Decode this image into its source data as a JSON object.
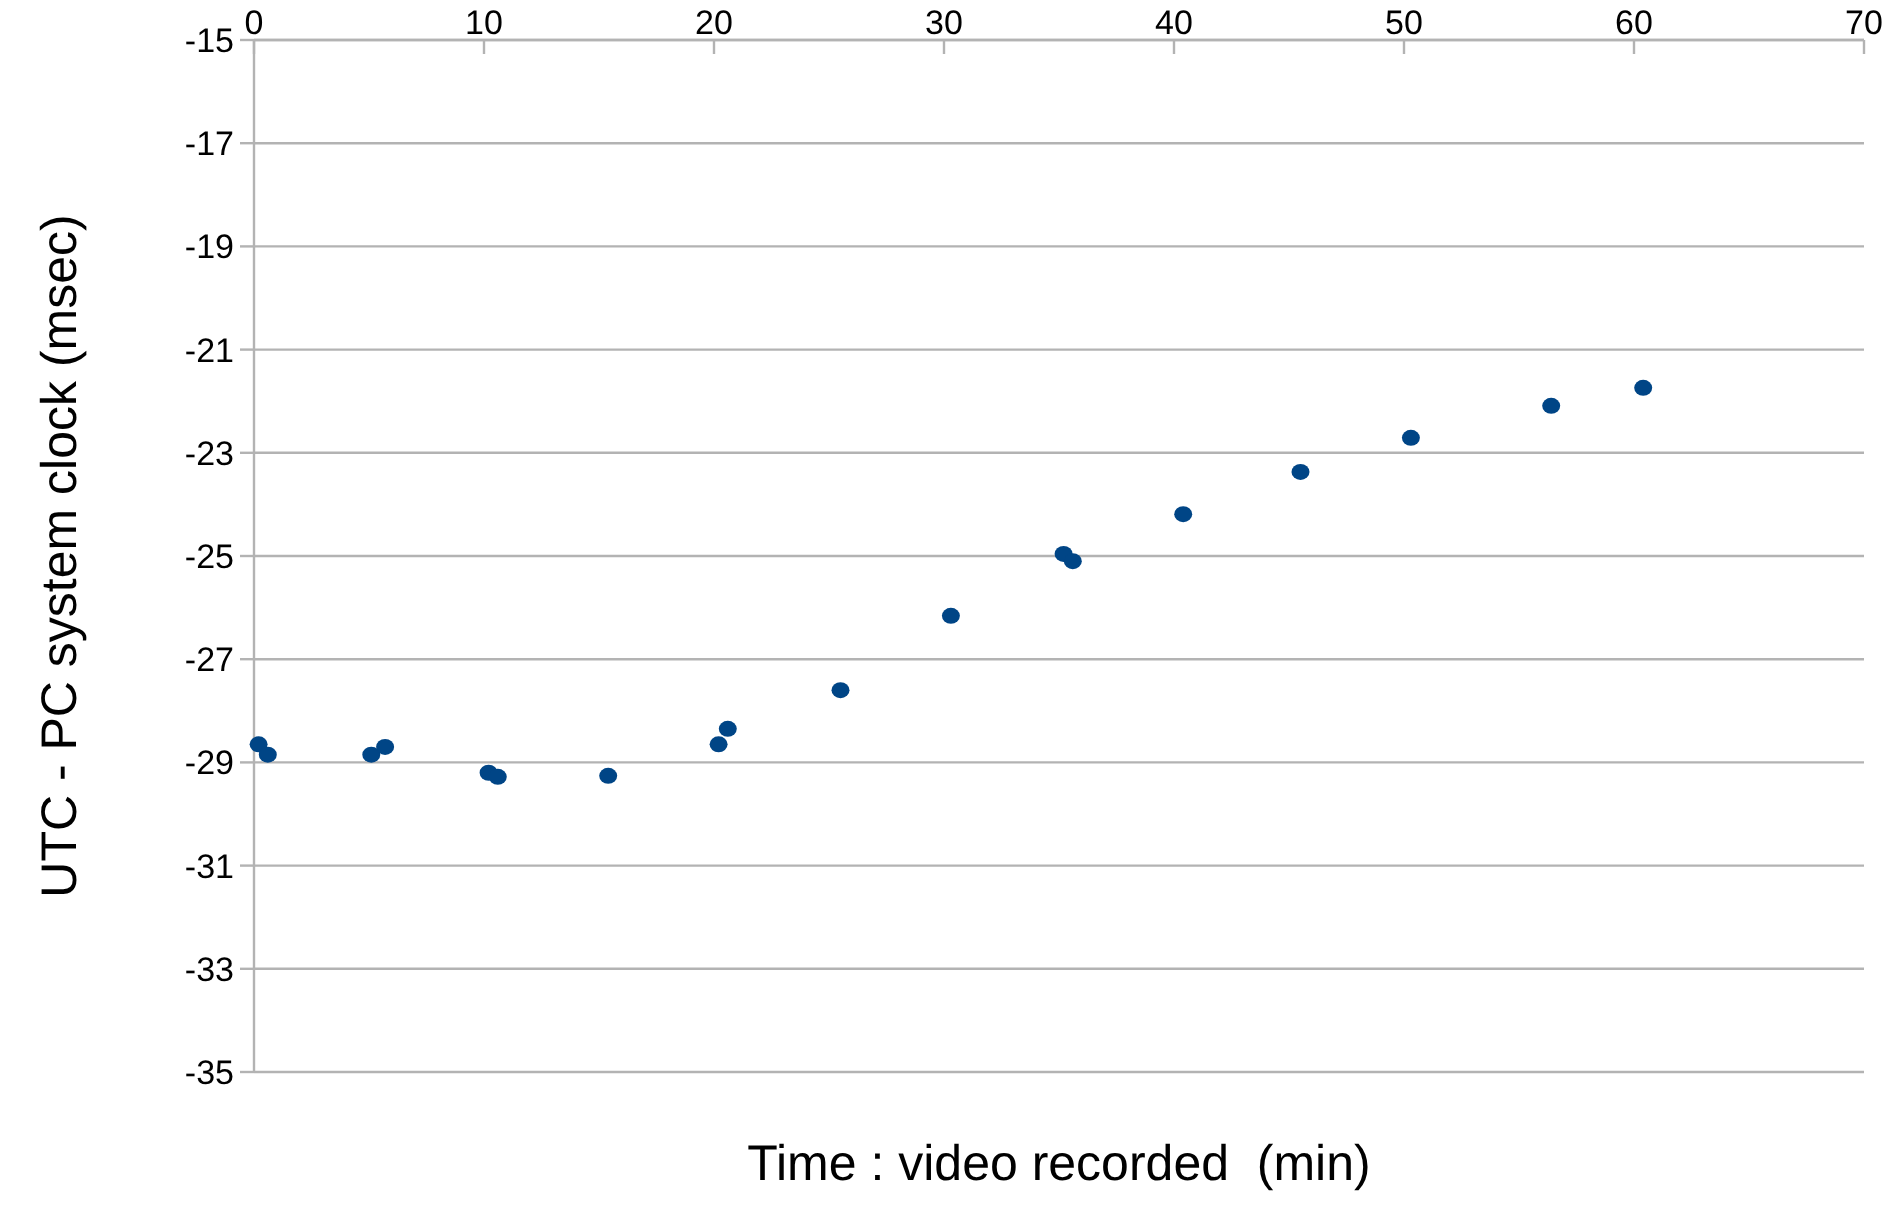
{
  "chart_data": {
    "type": "scatter",
    "xlabel": "Time : video recorded  (min)",
    "ylabel": "UTC - PC system clock (msec)",
    "x": [
      0.2,
      0.6,
      5.1,
      5.7,
      10.2,
      10.6,
      15.4,
      20.2,
      20.6,
      25.5,
      30.3,
      35.2,
      35.6,
      40.4,
      45.5,
      50.3,
      56.4,
      60.4
    ],
    "series": [
      {
        "color": "#004586",
        "values": [
          -28.65,
          -28.85,
          -28.85,
          -28.7,
          -29.2,
          -29.28,
          -29.26,
          -28.65,
          -28.35,
          -27.6,
          -26.16,
          -24.96,
          -25.1,
          -24.19,
          -23.37,
          -22.71,
          -22.09,
          -21.74
        ]
      }
    ],
    "xlim": [
      0,
      70
    ],
    "xticks": [
      0,
      10,
      20,
      30,
      40,
      50,
      60,
      70
    ],
    "ylim": [
      -35,
      -15
    ],
    "yticks": [
      -15,
      -17,
      -19,
      -21,
      -23,
      -25,
      -27,
      -29,
      -31,
      -33,
      -35
    ],
    "grid": "y",
    "marker": "circle"
  }
}
